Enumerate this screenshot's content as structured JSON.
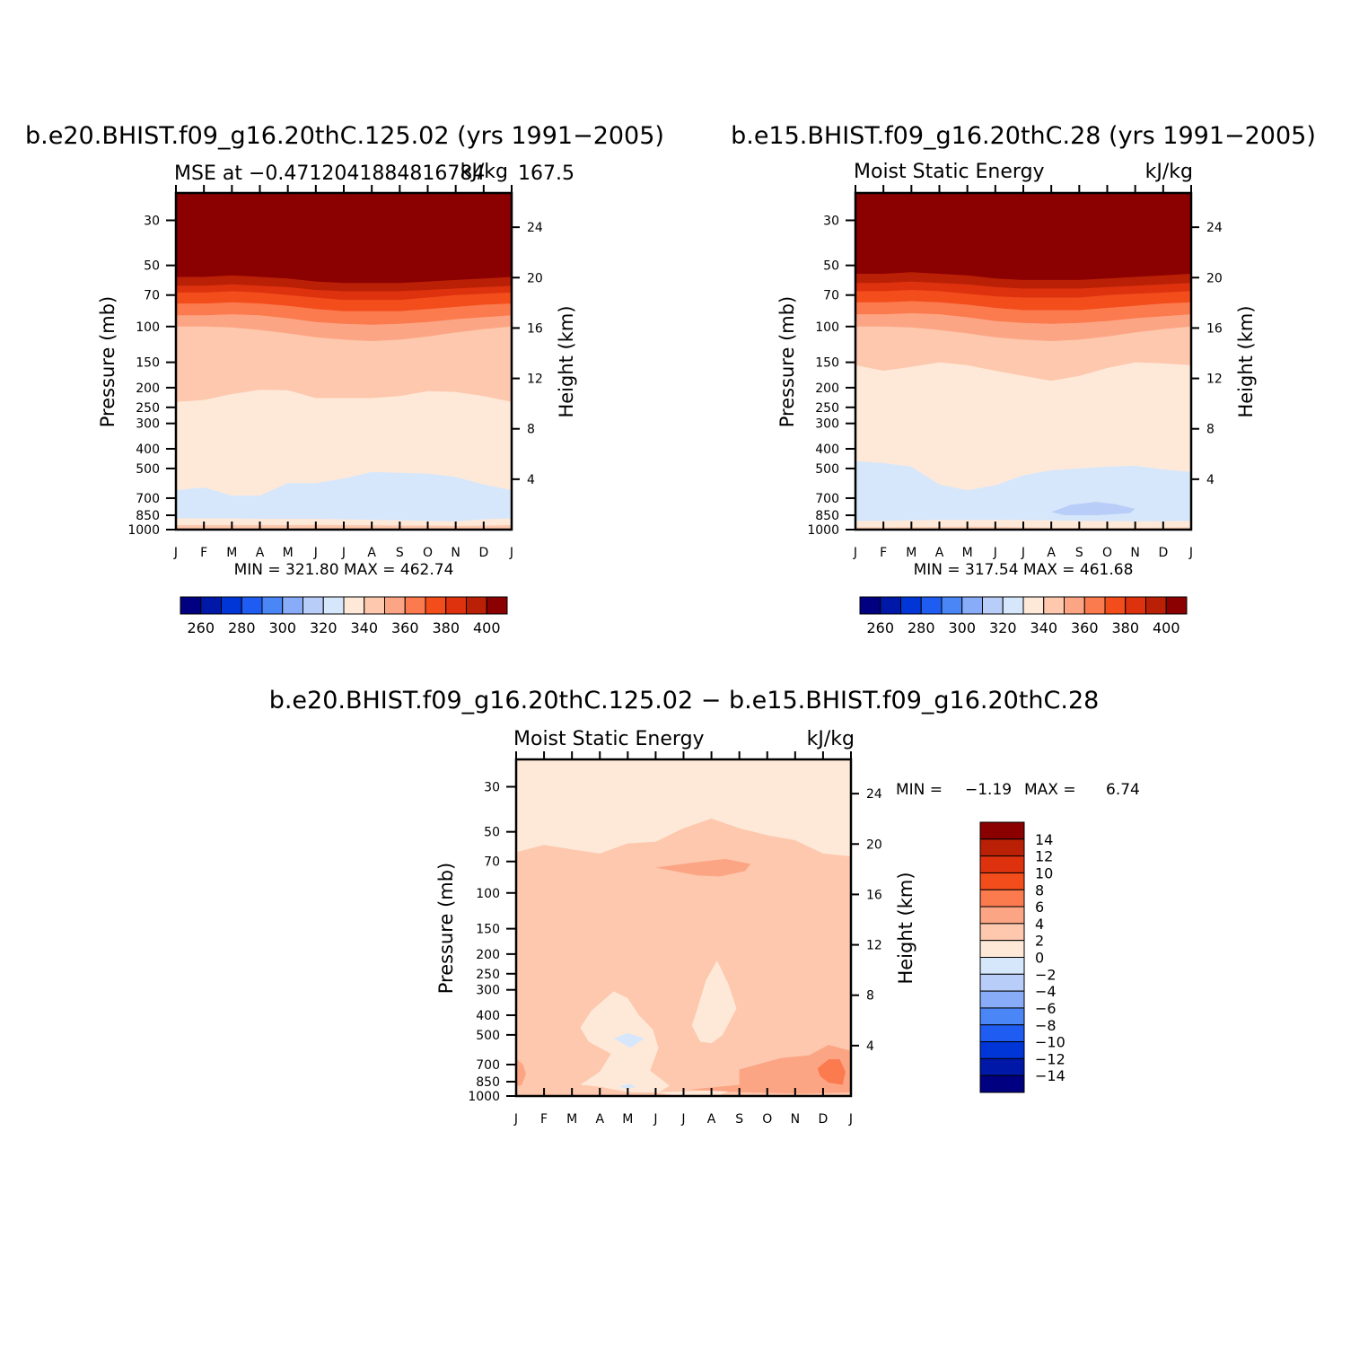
{
  "colors": {
    "palette": [
      "#000080",
      "#0018a8",
      "#0035d8",
      "#1f5cf2",
      "#4a86f6",
      "#88acf7",
      "#b8cdf7",
      "#d6e7fb",
      "#fee9d9",
      "#fdc8ad",
      "#fca585",
      "#fb7a4e",
      "#f34d1c",
      "#de320f",
      "#ba2006",
      "#8b0000"
    ]
  },
  "chart_data": [
    {
      "type": "heatmap",
      "title": "b.e20.BHIST.f09_g16.20thC.125.02 (yrs 1991−2005)",
      "subtitle_left": "MSE at −0.4712041884816784",
      "subtitle_right": "kJ/kg",
      "subtitle_extra": "167.5",
      "x": [
        "J",
        "F",
        "M",
        "A",
        "M",
        "J",
        "J",
        "A",
        "S",
        "O",
        "N",
        "D",
        "J"
      ],
      "ylabel": "Pressure (mb)",
      "y_ticks": [
        "30",
        "50",
        "70",
        "100",
        "150",
        "200",
        "250",
        "300",
        "400",
        "500",
        "700",
        "850",
        "1000"
      ],
      "y_log_scale": true,
      "ylim": [
        1000,
        22
      ],
      "ylabel_right": "Height (km)",
      "y_right_ticks": [
        "4",
        "8",
        "12",
        "16",
        "20",
        "24"
      ],
      "min_max": "MIN = 321.80 MAX = 462.74",
      "colorbar_labels": [
        "260",
        "280",
        "300",
        "320",
        "340",
        "360",
        "380",
        "400"
      ],
      "contour_levels": [
        250,
        260,
        270,
        280,
        290,
        300,
        310,
        320,
        330,
        340,
        350,
        360,
        370,
        380,
        390,
        400
      ],
      "level_boundaries_mb": [
        {
          "upper_class": 15,
          "lower_class": 14,
          "values": [
            57,
            57,
            56,
            57,
            58,
            60,
            61,
            61,
            61,
            60,
            59,
            58,
            57
          ]
        },
        {
          "upper_class": 14,
          "lower_class": 13,
          "values": [
            63,
            63,
            62,
            63,
            64,
            66,
            67,
            67,
            67,
            66,
            65,
            64,
            63
          ]
        },
        {
          "upper_class": 13,
          "lower_class": 12,
          "values": [
            68,
            68,
            67,
            68,
            70,
            72,
            74,
            74,
            74,
            72,
            70,
            69,
            68
          ]
        },
        {
          "upper_class": 12,
          "lower_class": 11,
          "values": [
            77,
            77,
            76,
            77,
            79,
            82,
            84,
            84,
            84,
            82,
            80,
            78,
            77
          ]
        },
        {
          "upper_class": 11,
          "lower_class": 10,
          "values": [
            88,
            88,
            87,
            88,
            91,
            95,
            97,
            98,
            97,
            95,
            92,
            90,
            88
          ]
        },
        {
          "upper_class": 10,
          "lower_class": 9,
          "values": [
            100,
            100,
            101,
            104,
            108,
            113,
            116,
            118,
            116,
            112,
            107,
            103,
            100
          ]
        },
        {
          "upper_class": 9,
          "lower_class": 8,
          "values": [
            235,
            230,
            215,
            205,
            206,
            225,
            225,
            225,
            220,
            208,
            210,
            220,
            235
          ]
        },
        {
          "upper_class": 8,
          "lower_class": 7,
          "values": [
            640,
            620,
            680,
            680,
            590,
            590,
            560,
            520,
            525,
            530,
            550,
            600,
            640
          ]
        },
        {
          "upper_class": 7,
          "lower_class": 8,
          "values": [
            880,
            880,
            880,
            885,
            885,
            885,
            890,
            895,
            900,
            905,
            910,
            890,
            880
          ]
        },
        {
          "upper_class": 8,
          "lower_class": 9,
          "values": [
            950,
            950,
            950,
            950,
            950,
            948,
            950,
            952,
            955,
            955,
            958,
            955,
            950
          ]
        },
        {
          "upper_class": 9,
          "lower_class": 10,
          "values": [
            985,
            985,
            985,
            985,
            985,
            985,
            985,
            985,
            985,
            985,
            985,
            985,
            985
          ]
        }
      ]
    },
    {
      "type": "heatmap",
      "title": "b.e15.BHIST.f09_g16.20thC.28 (yrs 1991−2005)",
      "subtitle_left": "Moist Static Energy",
      "subtitle_right": "kJ/kg",
      "x": [
        "J",
        "F",
        "M",
        "A",
        "M",
        "J",
        "J",
        "A",
        "S",
        "O",
        "N",
        "D",
        "J"
      ],
      "ylabel": "Pressure (mb)",
      "y_ticks": [
        "30",
        "50",
        "70",
        "100",
        "150",
        "200",
        "250",
        "300",
        "400",
        "500",
        "700",
        "850",
        "1000"
      ],
      "y_log_scale": true,
      "ylim": [
        1000,
        22
      ],
      "ylabel_right": "Height (km)",
      "y_right_ticks": [
        "4",
        "8",
        "12",
        "16",
        "20",
        "24"
      ],
      "min_max": "MIN = 317.54 MAX = 461.68",
      "colorbar_labels": [
        "260",
        "280",
        "300",
        "320",
        "340",
        "360",
        "380",
        "400"
      ],
      "contour_levels": [
        250,
        260,
        270,
        280,
        290,
        300,
        310,
        320,
        330,
        340,
        350,
        360,
        370,
        380,
        390,
        400
      ],
      "level_boundaries_mb": [
        {
          "upper_class": 15,
          "lower_class": 14,
          "values": [
            55,
            55,
            54,
            55,
            56,
            58,
            59,
            59,
            59,
            58,
            57,
            56,
            55
          ]
        },
        {
          "upper_class": 14,
          "lower_class": 13,
          "values": [
            61,
            61,
            60,
            61,
            62,
            64,
            65,
            65,
            65,
            64,
            63,
            62,
            61
          ]
        },
        {
          "upper_class": 13,
          "lower_class": 12,
          "values": [
            67,
            67,
            66,
            67,
            69,
            71,
            72,
            72,
            72,
            70,
            69,
            68,
            67
          ]
        },
        {
          "upper_class": 12,
          "lower_class": 11,
          "values": [
            76,
            76,
            75,
            76,
            78,
            81,
            83,
            83,
            83,
            81,
            79,
            77,
            76
          ]
        },
        {
          "upper_class": 11,
          "lower_class": 10,
          "values": [
            87,
            87,
            86,
            87,
            90,
            94,
            96,
            97,
            96,
            94,
            91,
            89,
            87
          ]
        },
        {
          "upper_class": 10,
          "lower_class": 9,
          "values": [
            100,
            100,
            101,
            104,
            108,
            113,
            116,
            118,
            116,
            112,
            107,
            103,
            100
          ]
        },
        {
          "upper_class": 9,
          "lower_class": 8,
          "values": [
            155,
            165,
            158,
            150,
            155,
            165,
            175,
            185,
            175,
            160,
            150,
            152,
            155
          ]
        },
        {
          "upper_class": 8,
          "lower_class": 7,
          "values": [
            460,
            470,
            490,
            600,
            640,
            605,
            540,
            510,
            500,
            490,
            485,
            505,
            520
          ]
        },
        {
          "upper_class": 7,
          "lower_class": 8,
          "values": [
            905,
            905,
            900,
            895,
            895,
            895,
            898,
            900,
            905,
            908,
            910,
            910,
            905
          ]
        },
        {
          "upper_class": 8,
          "lower_class": 9,
          "values": [
            975,
            975,
            972,
            970,
            968,
            970,
            975,
            978,
            980,
            980,
            980,
            978,
            975
          ]
        }
      ],
      "blobs": [
        {
          "class": 6,
          "points_month_mb": [
            [
              7.0,
              820
            ],
            [
              7.7,
              755
            ],
            [
              8.6,
              730
            ],
            [
              9.3,
              750
            ],
            [
              10.0,
              790
            ],
            [
              9.8,
              830
            ],
            [
              8.6,
              850
            ],
            [
              7.5,
              850
            ]
          ]
        }
      ]
    },
    {
      "type": "heatmap",
      "title": "b.e20.BHIST.f09_g16.20thC.125.02 − b.e15.BHIST.f09_g16.20thC.28",
      "subtitle_left": "Moist Static Energy",
      "subtitle_right": "kJ/kg",
      "x": [
        "J",
        "F",
        "M",
        "A",
        "M",
        "J",
        "J",
        "A",
        "S",
        "O",
        "N",
        "D",
        "J"
      ],
      "ylabel": "Pressure (mb)",
      "y_ticks": [
        "30",
        "50",
        "70",
        "100",
        "150",
        "200",
        "250",
        "300",
        "400",
        "500",
        "700",
        "850",
        "1000"
      ],
      "y_log_scale": true,
      "ylim": [
        1000,
        22
      ],
      "ylabel_right": "Height (km)",
      "y_right_ticks": [
        "4",
        "8",
        "12",
        "16",
        "20",
        "24"
      ],
      "min_label": "MIN =",
      "min_value": "−1.19",
      "max_label": "MAX =",
      "max_value": "6.74",
      "colorbar_labels": [
        "14",
        "12",
        "10",
        "8",
        "6",
        "4",
        "2",
        "0",
        "−2",
        "−4",
        "−6",
        "−8",
        "−10",
        "−12",
        "−14"
      ],
      "contour_levels": [
        -14,
        -12,
        -10,
        -8,
        -6,
        -4,
        -2,
        0,
        2,
        4,
        6,
        8,
        10,
        12,
        14
      ],
      "background_class": 9,
      "blobs": [
        {
          "class": 8,
          "points_month_mb": [
            [
              0,
              22
            ],
            [
              12,
              22
            ],
            [
              12,
              66
            ],
            [
              11,
              64
            ],
            [
              10,
              55
            ],
            [
              9,
              52
            ],
            [
              8,
              48
            ],
            [
              7,
              43
            ],
            [
              6,
              48
            ],
            [
              5,
              56
            ],
            [
              4,
              57
            ],
            [
              3,
              64
            ],
            [
              2,
              61
            ],
            [
              1,
              58
            ],
            [
              0,
              63
            ]
          ]
        },
        {
          "class": 10,
          "points_month_mb": [
            [
              5,
              75
            ],
            [
              6.3,
              71
            ],
            [
              7.5,
              68
            ],
            [
              8.4,
              72
            ],
            [
              8.2,
              78
            ],
            [
              7.3,
              83
            ],
            [
              6.5,
              82
            ]
          ]
        },
        {
          "class": 10,
          "points_month_mb": [
            [
              0,
              655
            ],
            [
              0.25,
              700
            ],
            [
              0.35,
              780
            ],
            [
              0.2,
              880
            ],
            [
              0,
              900
            ]
          ]
        },
        {
          "class": 10,
          "points_month_mb": [
            [
              6.2,
              930
            ],
            [
              8.0,
              880
            ],
            [
              8.0,
              740
            ],
            [
              9.5,
              650
            ],
            [
              10.5,
              630
            ],
            [
              11.2,
              560
            ],
            [
              12,
              600
            ],
            [
              12,
              960
            ],
            [
              10.3,
              975
            ],
            [
              8.6,
              962
            ],
            [
              7.3,
              950
            ]
          ]
        },
        {
          "class": 11,
          "points_month_mb": [
            [
              10.8,
              730
            ],
            [
              11.2,
              660
            ],
            [
              11.6,
              660
            ],
            [
              11.8,
              760
            ],
            [
              11.7,
              880
            ],
            [
              11.2,
              860
            ],
            [
              10.9,
              800
            ]
          ]
        },
        {
          "class": 8,
          "points_month_mb": [
            [
              2.3,
              460
            ],
            [
              2.7,
              380
            ],
            [
              3.5,
              305
            ],
            [
              4.0,
              330
            ],
            [
              4.4,
              400
            ],
            [
              4.9,
              470
            ],
            [
              5.1,
              580
            ],
            [
              4.8,
              750
            ],
            [
              5.5,
              890
            ],
            [
              5.1,
              960
            ],
            [
              4.0,
              958
            ],
            [
              3.0,
              900
            ],
            [
              2.3,
              880
            ],
            [
              3.0,
              760
            ],
            [
              3.4,
              620
            ],
            [
              2.6,
              540
            ]
          ]
        },
        {
          "class": 8,
          "points_month_mb": [
            [
              6.3,
              450
            ],
            [
              6.5,
              370
            ],
            [
              6.8,
              270
            ],
            [
              7.2,
              215
            ],
            [
              7.6,
              280
            ],
            [
              7.9,
              370
            ],
            [
              7.4,
              500
            ],
            [
              7.0,
              550
            ],
            [
              6.6,
              540
            ]
          ]
        },
        {
          "class": 8,
          "points_month_mb": [
            [
              5,
              960
            ],
            [
              6.8,
              940
            ],
            [
              7.6,
              950
            ],
            [
              7.3,
              985
            ],
            [
              5.6,
              990
            ]
          ]
        },
        {
          "class": 7,
          "points_month_mb": [
            [
              3.5,
              520
            ],
            [
              4.0,
              490
            ],
            [
              4.6,
              520
            ],
            [
              4.1,
              580
            ]
          ]
        },
        {
          "class": 7,
          "points_month_mb": [
            [
              3.7,
              895
            ],
            [
              4.1,
              870
            ],
            [
              4.3,
              905
            ],
            [
              3.9,
              915
            ]
          ]
        }
      ]
    }
  ]
}
